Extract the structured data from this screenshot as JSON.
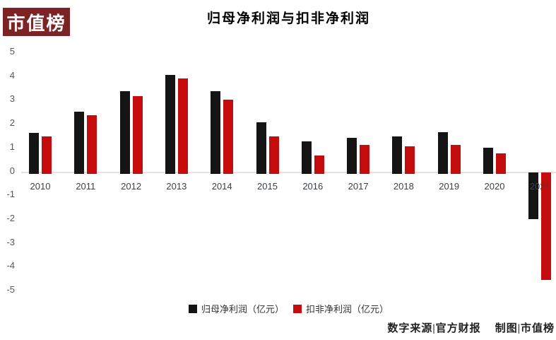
{
  "brand": {
    "logo_text": "市值榜"
  },
  "chart_data": {
    "type": "bar",
    "title": "归母净利润与扣非净利润",
    "categories": [
      "2010",
      "2011",
      "2012",
      "2013",
      "2014",
      "2015",
      "2016",
      "2017",
      "2018",
      "2019",
      "2020",
      "2021"
    ],
    "series": [
      {
        "name": "归母净利润（亿元）",
        "color": "#141414",
        "values": [
          1.65,
          2.55,
          3.4,
          4.1,
          3.4,
          2.1,
          1.3,
          1.45,
          1.5,
          1.7,
          1.05,
          -1.9
        ]
      },
      {
        "name": "扣非净利润（亿元）",
        "color": "#c40c0c",
        "values": [
          1.5,
          2.4,
          3.2,
          3.95,
          3.05,
          1.5,
          0.7,
          1.15,
          1.1,
          1.15,
          0.8,
          -4.45
        ]
      }
    ],
    "xlabel": "",
    "ylabel": "",
    "ylim": [
      -5,
      5
    ],
    "yticks": [
      5,
      4,
      3,
      2,
      1,
      0,
      -1,
      -2,
      -3,
      -4,
      -5
    ],
    "grid": false,
    "legend_position": "bottom"
  },
  "footer": {
    "source": "数字来源|官方财报",
    "credit": "制图|市值榜"
  },
  "colors": {
    "bar_black": "#141414",
    "bar_red": "#c40c0c",
    "logo_background": "#7d2326",
    "baseline": "#e2e2e2"
  }
}
